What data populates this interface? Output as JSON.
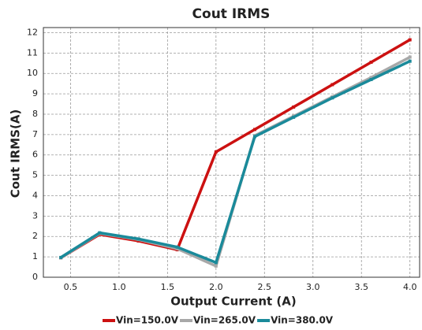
{
  "chart_data": {
    "type": "line",
    "title": "Cout IRMS",
    "x_label": "Output Current (A)",
    "y_label": "Cout IRMS(A)",
    "x": [
      0.4,
      0.8,
      1.2,
      1.6,
      2.0,
      2.4,
      2.8,
      3.2,
      3.6,
      4.0
    ],
    "series": [
      {
        "name": "Vin=150.0V",
        "color": "#cc1111",
        "values": [
          0.95,
          2.1,
          1.78,
          1.35,
          6.15,
          7.25,
          8.35,
          9.45,
          10.55,
          11.65
        ]
      },
      {
        "name": "Vin=265.0V",
        "color": "#a8a8a8",
        "values": [
          0.95,
          2.15,
          1.85,
          1.4,
          0.55,
          6.95,
          7.9,
          8.85,
          9.8,
          10.8
        ]
      },
      {
        "name": "Vin=380.0V",
        "color": "#1a8a9a",
        "values": [
          0.97,
          2.18,
          1.88,
          1.48,
          0.72,
          6.9,
          7.85,
          8.8,
          9.7,
          10.6
        ]
      }
    ],
    "xlim": [
      0.22,
      4.1
    ],
    "xticks": [
      0.5,
      {
        "value": 1,
        "label": "1.0"
      },
      1.5,
      {
        "value": 2,
        "label": "2.0"
      },
      2.5,
      {
        "value": 3,
        "label": "3.0"
      },
      3.5,
      {
        "value": 4,
        "label": "4.0"
      }
    ],
    "ylim": [
      0,
      12.25
    ],
    "yticks": [
      0,
      1,
      2,
      3,
      4,
      5,
      6,
      7,
      8,
      9,
      10,
      11,
      12
    ],
    "grid": true,
    "legend": "bottom"
  }
}
